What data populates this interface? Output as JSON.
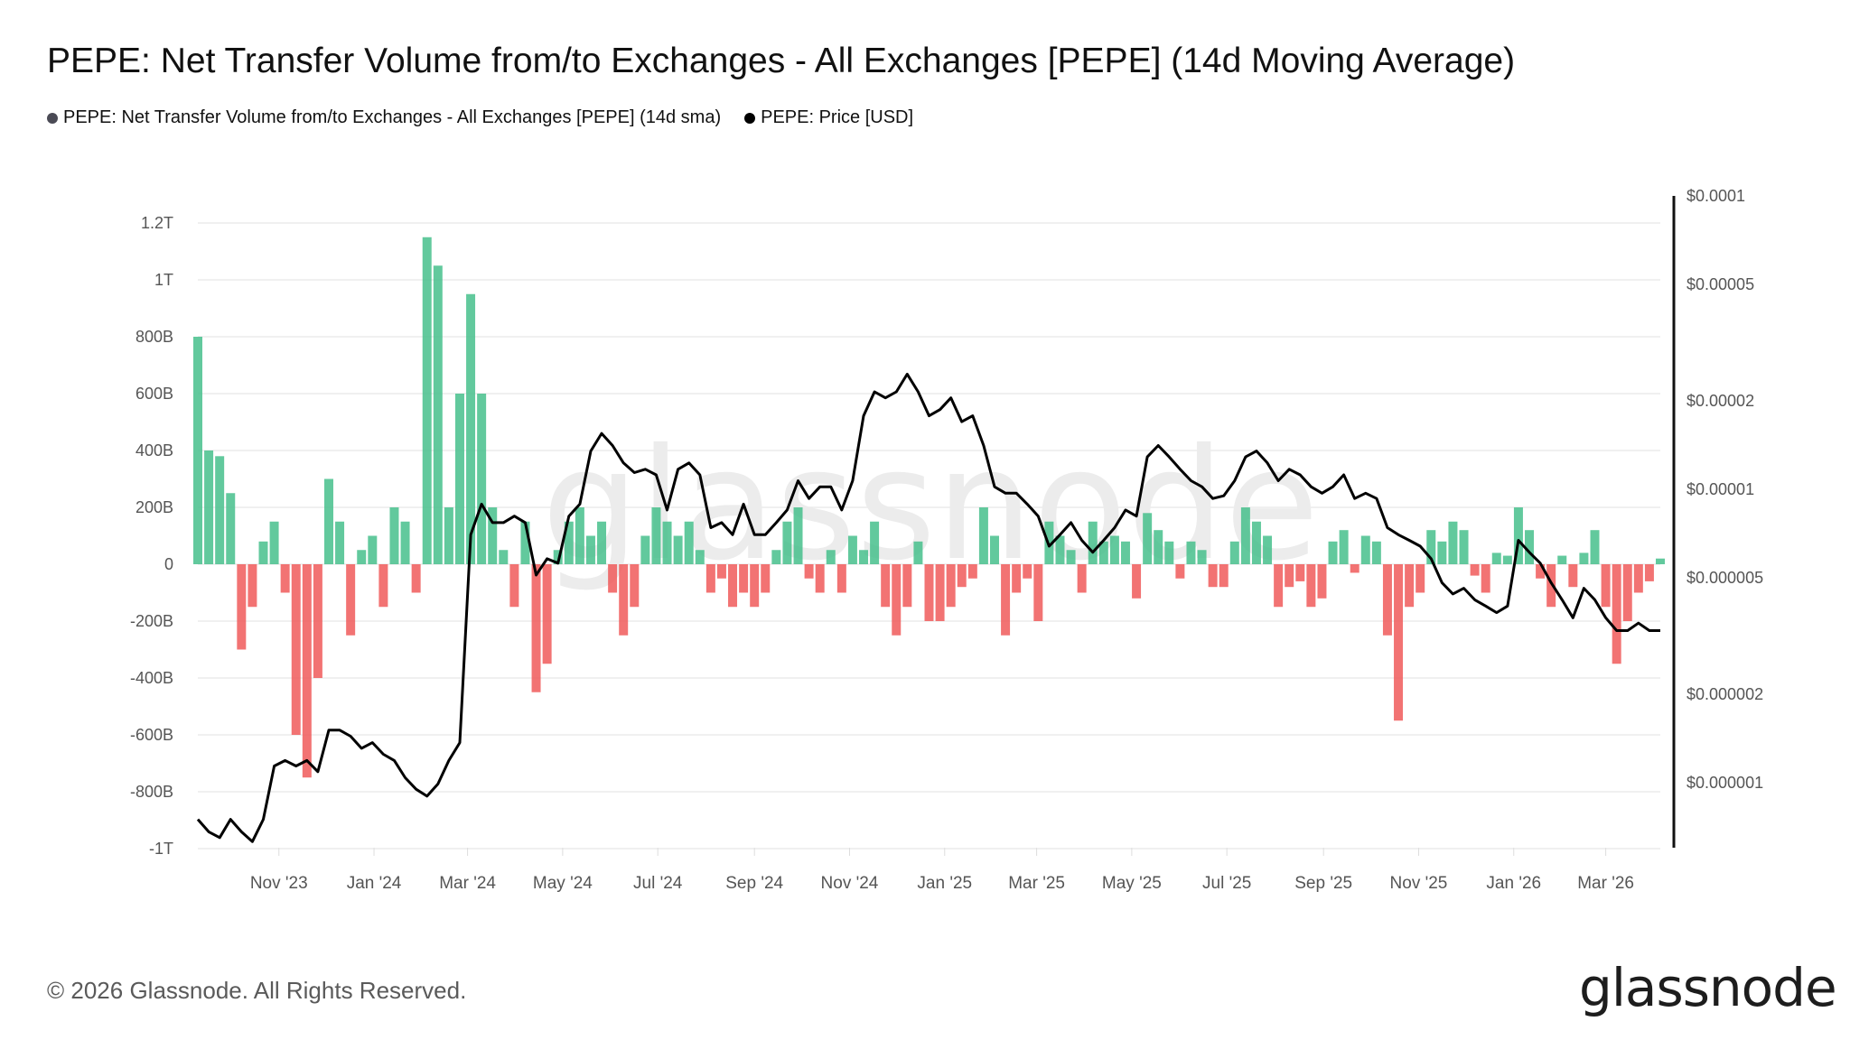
{
  "title": "PEPE: Net Transfer Volume from/to Exchanges - All Exchanges [PEPE] (14d Moving Average)",
  "legend": [
    {
      "label": "PEPE: Net Transfer Volume from/to Exchanges - All Exchanges [PEPE] (14d sma)",
      "color": "#4a4a55"
    },
    {
      "label": "PEPE: Price [USD]",
      "color": "#000000"
    }
  ],
  "footer": "© 2026 Glassnode. All Rights Reserved.",
  "logo": "glassnode",
  "watermark": "glassnode",
  "chart_data": {
    "type": "bar+line",
    "title": "PEPE: Net Transfer Volume from/to Exchanges - All Exchanges [PEPE] (14d Moving Average)",
    "colors": {
      "positive": "#47c08c",
      "negative": "#f05a5a",
      "price": "#000000",
      "grid": "#ececec"
    },
    "grid": true,
    "legend_position": "top-left",
    "left_axis": {
      "range_billions": [
        -1000,
        1200
      ],
      "ticks": [
        1200,
        1000,
        800,
        600,
        400,
        200,
        0,
        -200,
        -400,
        -600,
        -800,
        -1000
      ],
      "tick_labels": [
        "1.2T",
        "1T",
        "800B",
        "600B",
        "400B",
        "200B",
        "0",
        "-200B",
        "-400B",
        "-600B",
        "-800B",
        "-1T"
      ]
    },
    "right_axis": {
      "scale": "log",
      "range": [
        6e-07,
        0.0001
      ],
      "ticks": [
        0.0001,
        5e-05,
        2e-05,
        1e-05,
        5e-06,
        2e-06,
        1e-06
      ],
      "tick_labels": [
        "$0.0001",
        "$0.00005",
        "$0.00002",
        "$0.00001",
        "$0.000005",
        "$0.000002",
        "$0.000001"
      ]
    },
    "x_axis": {
      "range": [
        "2023-09-10",
        "2026-04-05"
      ],
      "ticks": [
        "2023-11-01",
        "2024-01-01",
        "2024-03-01",
        "2024-05-01",
        "2024-07-01",
        "2024-09-01",
        "2024-11-01",
        "2025-01-01",
        "2025-03-01",
        "2025-05-01",
        "2025-07-01",
        "2025-09-01",
        "2025-11-01",
        "2026-01-01",
        "2026-03-01"
      ],
      "tick_labels": [
        "Nov '23",
        "Jan '24",
        "Mar '24",
        "May '24",
        "Jul '24",
        "Sep '24",
        "Nov '24",
        "Jan '25",
        "Mar '25",
        "May '25",
        "Jul '25",
        "Sep '25",
        "Nov '25",
        "Jan '26",
        "Mar '26"
      ]
    },
    "dates": [
      "2023-09-10",
      "2023-09-17",
      "2023-09-24",
      "2023-10-01",
      "2023-10-08",
      "2023-10-15",
      "2023-10-22",
      "2023-10-29",
      "2023-11-05",
      "2023-11-12",
      "2023-11-19",
      "2023-11-26",
      "2023-12-03",
      "2023-12-10",
      "2023-12-17",
      "2023-12-24",
      "2023-12-31",
      "2024-01-07",
      "2024-01-14",
      "2024-01-21",
      "2024-01-28",
      "2024-02-04",
      "2024-02-11",
      "2024-02-18",
      "2024-02-25",
      "2024-03-03",
      "2024-03-10",
      "2024-03-17",
      "2024-03-24",
      "2024-03-31",
      "2024-04-07",
      "2024-04-14",
      "2024-04-21",
      "2024-04-28",
      "2024-05-05",
      "2024-05-12",
      "2024-05-19",
      "2024-05-26",
      "2024-06-02",
      "2024-06-09",
      "2024-06-16",
      "2024-06-23",
      "2024-06-30",
      "2024-07-07",
      "2024-07-14",
      "2024-07-21",
      "2024-07-28",
      "2024-08-04",
      "2024-08-11",
      "2024-08-18",
      "2024-08-25",
      "2024-09-01",
      "2024-09-08",
      "2024-09-15",
      "2024-09-22",
      "2024-09-29",
      "2024-10-06",
      "2024-10-13",
      "2024-10-20",
      "2024-10-27",
      "2024-11-03",
      "2024-11-10",
      "2024-11-17",
      "2024-11-24",
      "2024-12-01",
      "2024-12-08",
      "2024-12-15",
      "2024-12-22",
      "2024-12-29",
      "2025-01-05",
      "2025-01-12",
      "2025-01-19",
      "2025-01-26",
      "2025-02-02",
      "2025-02-09",
      "2025-02-16",
      "2025-02-23",
      "2025-03-02",
      "2025-03-09",
      "2025-03-16",
      "2025-03-23",
      "2025-03-30",
      "2025-04-06",
      "2025-04-13",
      "2025-04-20",
      "2025-04-27",
      "2025-05-04",
      "2025-05-11",
      "2025-05-18",
      "2025-05-25",
      "2025-06-01",
      "2025-06-08",
      "2025-06-15",
      "2025-06-22",
      "2025-06-29",
      "2025-07-06",
      "2025-07-13",
      "2025-07-20",
      "2025-07-27",
      "2025-08-03",
      "2025-08-10",
      "2025-08-17",
      "2025-08-24",
      "2025-08-31",
      "2025-09-07",
      "2025-09-14",
      "2025-09-21",
      "2025-09-28",
      "2025-10-05",
      "2025-10-12",
      "2025-10-19",
      "2025-10-26",
      "2025-11-02",
      "2025-11-09",
      "2025-11-16",
      "2025-11-23",
      "2025-11-30",
      "2025-12-07",
      "2025-12-14",
      "2025-12-21",
      "2025-12-28",
      "2026-01-04",
      "2026-01-11",
      "2026-01-18",
      "2026-01-25",
      "2026-02-01",
      "2026-02-08",
      "2026-02-15",
      "2026-02-22",
      "2026-03-01",
      "2026-03-08",
      "2026-03-15",
      "2026-03-22",
      "2026-03-29",
      "2026-04-05"
    ],
    "series": [
      {
        "name": "PEPE: Net Transfer Volume from/to Exchanges - All Exchanges [PEPE] (14d sma)",
        "unit": "billions PEPE",
        "values": [
          800,
          400,
          380,
          250,
          -300,
          -150,
          80,
          150,
          -100,
          -600,
          -750,
          -400,
          300,
          150,
          -250,
          50,
          100,
          -150,
          200,
          150,
          -100,
          1150,
          1050,
          200,
          600,
          950,
          600,
          200,
          50,
          -150,
          150,
          -450,
          -350,
          50,
          150,
          200,
          100,
          150,
          -100,
          -250,
          -150,
          100,
          200,
          150,
          100,
          150,
          50,
          -100,
          -50,
          -150,
          -100,
          -150,
          -100,
          50,
          150,
          200,
          -50,
          -100,
          50,
          -100,
          100,
          50,
          150,
          -150,
          -250,
          -150,
          80,
          -200,
          -200,
          -150,
          -80,
          -50,
          200,
          100,
          -250,
          -100,
          -50,
          -200,
          150,
          100,
          50,
          -100,
          150,
          80,
          100,
          80,
          -120,
          180,
          120,
          80,
          -50,
          80,
          50,
          -80,
          -80,
          80,
          200,
          150,
          100,
          -150,
          -80,
          -60,
          -150,
          -120,
          80,
          120,
          -30,
          100,
          80,
          -250,
          -550,
          -150,
          -100,
          120,
          80,
          150,
          120,
          -40,
          -100,
          40,
          30,
          200,
          120,
          -50,
          -150,
          30,
          -80,
          40,
          120,
          -150,
          -350,
          -200,
          -100,
          -60,
          20
        ]
      },
      {
        "name": "PEPE: Price [USD]",
        "unit": "USD",
        "values": [
          7.5e-07,
          6.8e-07,
          6.5e-07,
          7.5e-07,
          6.8e-07,
          6.3e-07,
          7.5e-07,
          1.14e-06,
          1.19e-06,
          1.14e-06,
          1.19e-06,
          1.09e-06,
          1.51e-06,
          1.51e-06,
          1.44e-06,
          1.31e-06,
          1.37e-06,
          1.25e-06,
          1.19e-06,
          1.04e-06,
          9.5e-07,
          9e-07,
          9.9e-07,
          1.19e-06,
          1.37e-06,
          7e-06,
          8.9e-06,
          7.7e-06,
          7.7e-06,
          8.1e-06,
          7.7e-06,
          5.1e-06,
          5.8e-06,
          5.6e-06,
          8.1e-06,
          8.9e-06,
          1.35e-05,
          1.55e-05,
          1.41e-05,
          1.23e-05,
          1.14e-05,
          1.17e-05,
          1.12e-05,
          8.5e-06,
          1.17e-05,
          1.23e-05,
          1.12e-05,
          7.4e-06,
          7.7e-06,
          7e-06,
          8.9e-06,
          7e-06,
          7e-06,
          7.7e-06,
          8.5e-06,
          1.07e-05,
          9.3e-06,
          1.02e-05,
          1.02e-05,
          8.5e-06,
          1.07e-05,
          1.78e-05,
          2.15e-05,
          2.05e-05,
          2.15e-05,
          2.47e-05,
          2.15e-05,
          1.78e-05,
          1.87e-05,
          2.05e-05,
          1.7e-05,
          1.78e-05,
          1.41e-05,
          1.02e-05,
          9.7e-06,
          9.7e-06,
          8.9e-06,
          8.1e-06,
          6.4e-06,
          7e-06,
          7.7e-06,
          6.7e-06,
          6.1e-06,
          6.7e-06,
          7.4e-06,
          8.5e-06,
          8.1e-06,
          1.29e-05,
          1.41e-05,
          1.29e-05,
          1.17e-05,
          1.07e-05,
          1.02e-05,
          9.3e-06,
          9.5e-06,
          1.07e-05,
          1.29e-05,
          1.35e-05,
          1.23e-05,
          1.07e-05,
          1.17e-05,
          1.12e-05,
          1.02e-05,
          9.7e-06,
          1.02e-05,
          1.12e-05,
          9.3e-06,
          9.7e-06,
          9.3e-06,
          7.4e-06,
          7e-06,
          6.7e-06,
          6.4e-06,
          5.8e-06,
          4.8e-06,
          4.4e-06,
          4.6e-06,
          4.2e-06,
          4e-06,
          3.8e-06,
          4e-06,
          6.7e-06,
          6.1e-06,
          5.6e-06,
          4.8e-06,
          4.2e-06,
          3.65e-06,
          4.6e-06,
          4.2e-06,
          3.65e-06,
          3.3e-06,
          3.3e-06,
          3.5e-06,
          3.3e-06,
          3.3e-06
        ]
      }
    ]
  }
}
